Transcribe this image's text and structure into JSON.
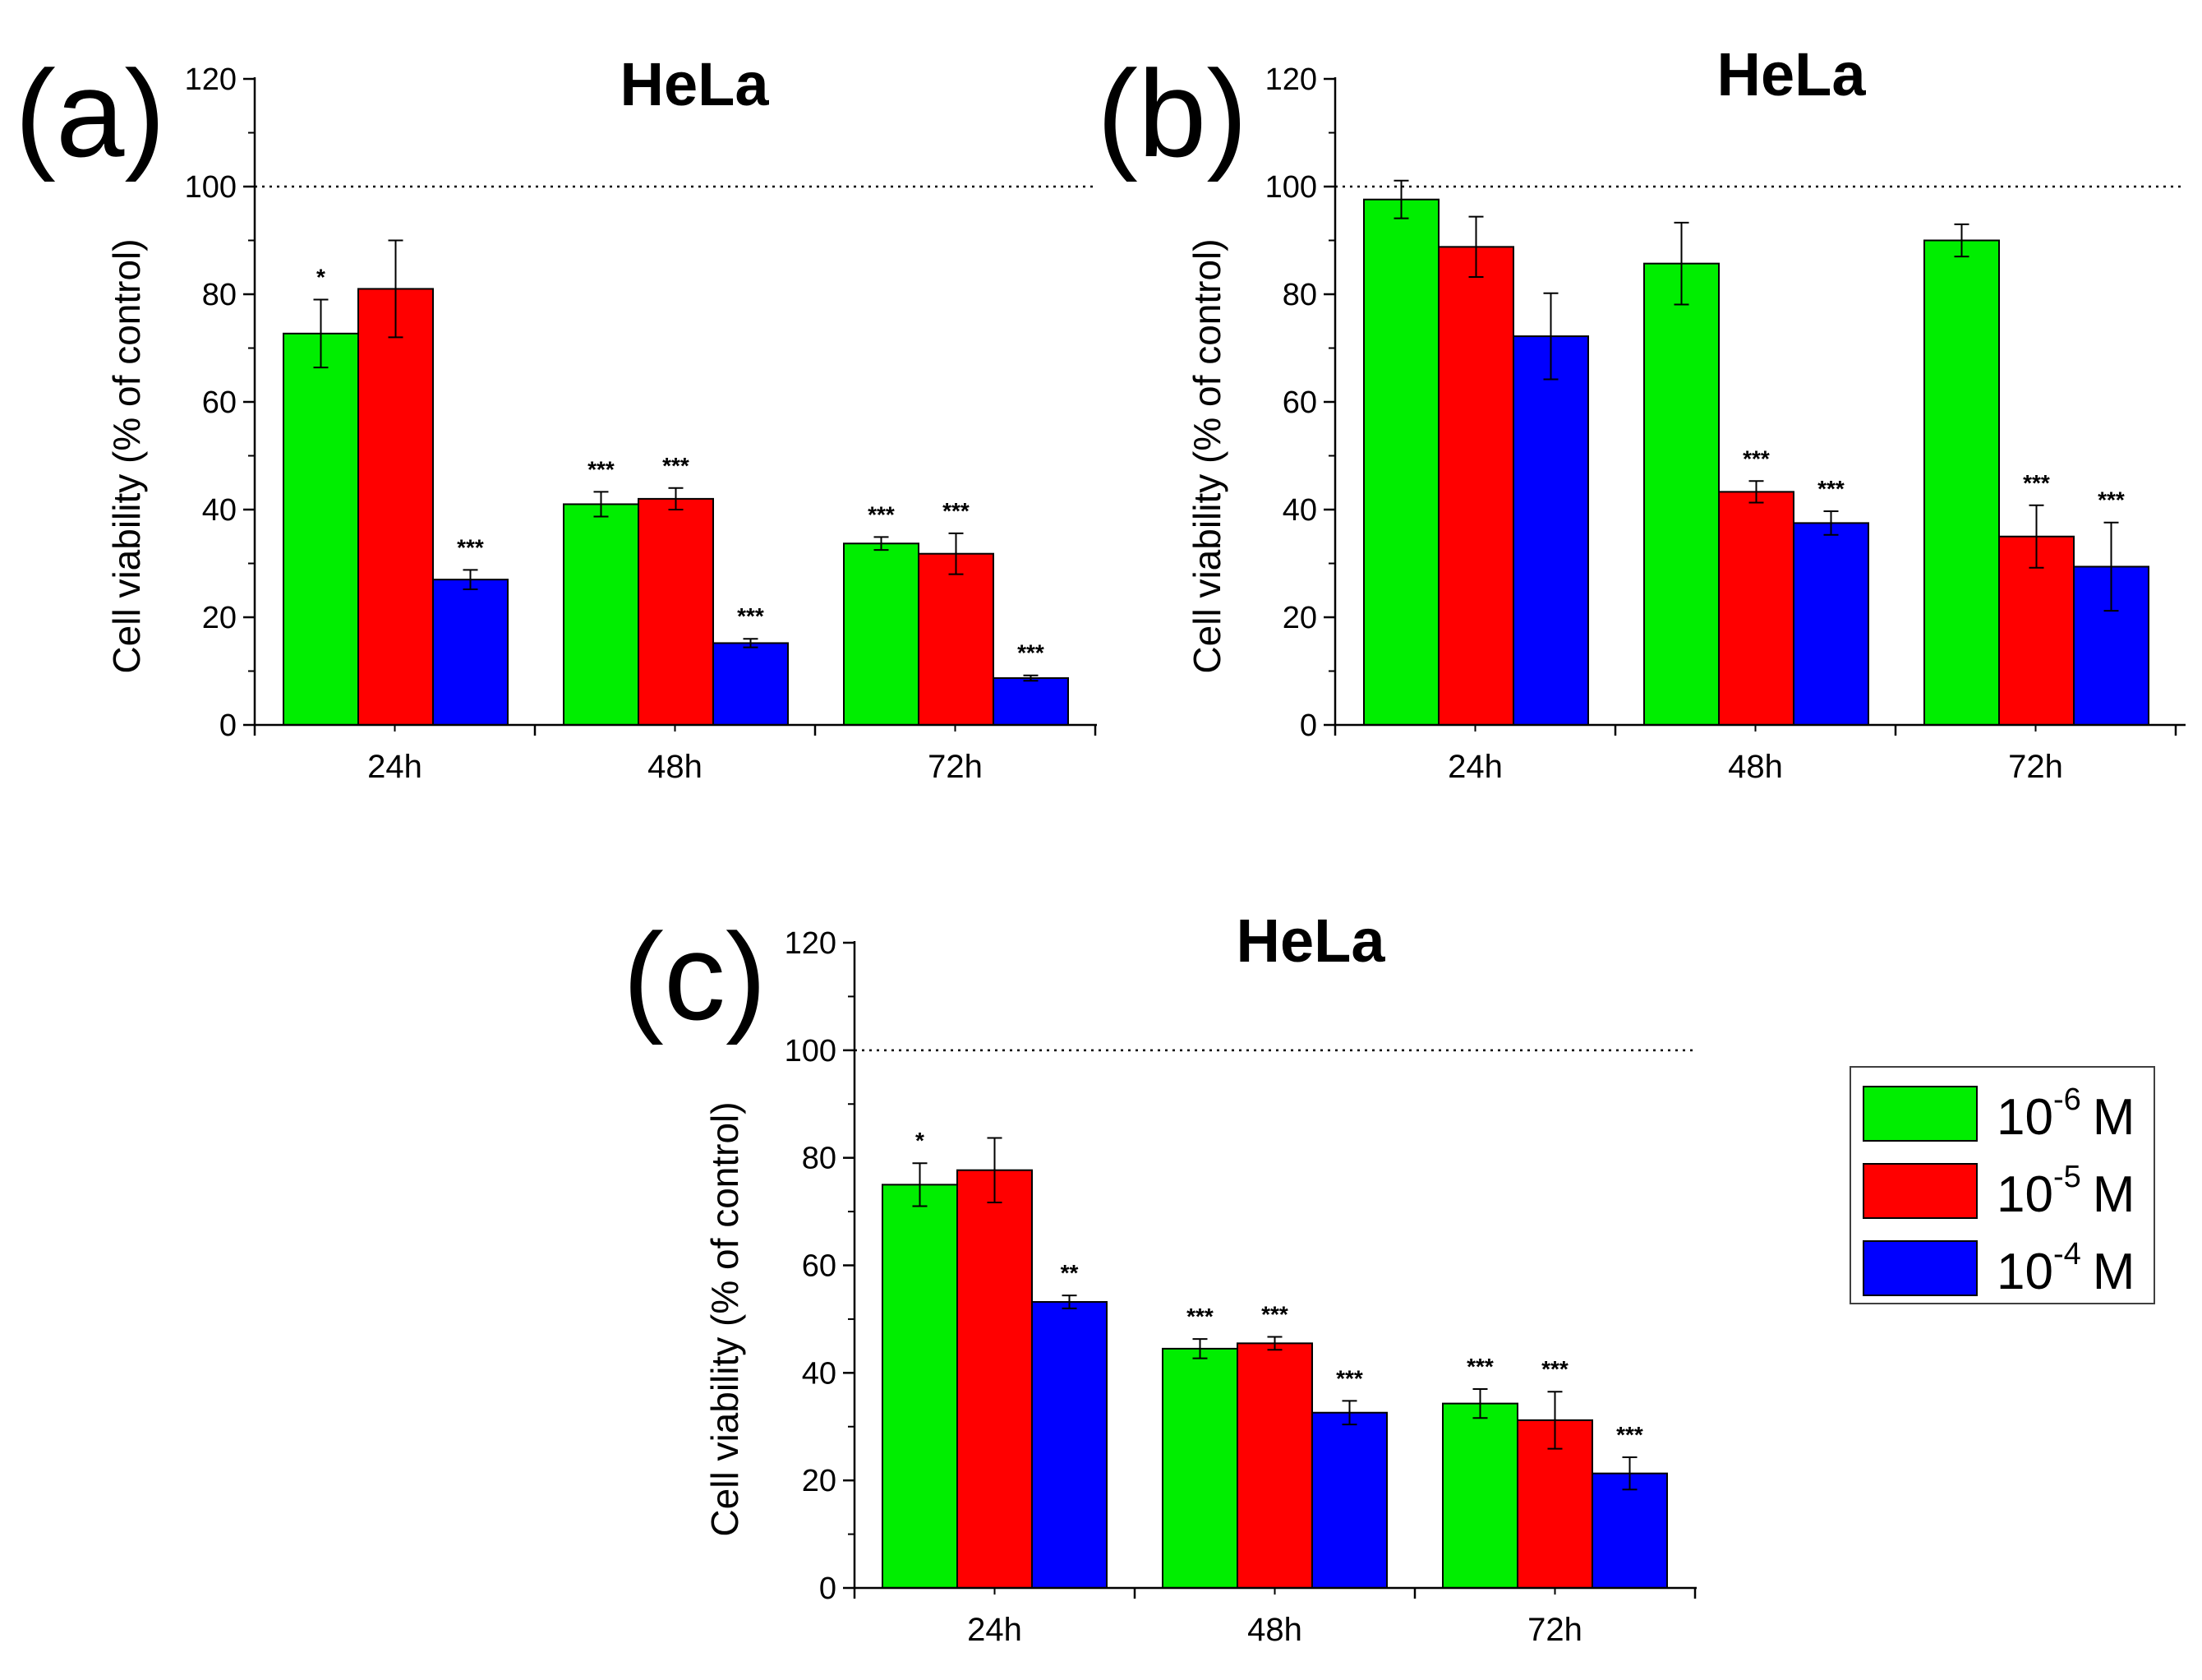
{
  "figure": {
    "series_names": [
      "10^-6 M",
      "10^-5 M",
      "10^-4 M"
    ],
    "colors": [
      "#00ee00",
      "#ff0000",
      "#0000ff"
    ],
    "reference_line": 100
  },
  "legend": {
    "items": [
      {
        "base": "10",
        "exp": "-6",
        "unit": "M",
        "color": "#00ee00"
      },
      {
        "base": "10",
        "exp": "-5",
        "unit": "M",
        "color": "#ff0000"
      },
      {
        "base": "10",
        "exp": "-4",
        "unit": "M",
        "color": "#0000ff"
      }
    ]
  },
  "chart_data": [
    {
      "type": "bar",
      "panel": "(a)",
      "title": "HeLa",
      "ylabel": "Cell viability (% of control)",
      "xlabel": "",
      "ylim": [
        0,
        120
      ],
      "yticks": [
        0,
        20,
        40,
        60,
        80,
        100,
        120
      ],
      "categories": [
        "24h",
        "48h",
        "72h"
      ],
      "series": [
        {
          "name": "10^-6 M",
          "values": [
            72.7,
            41.0,
            33.7
          ],
          "errors": [
            6.3,
            2.3,
            1.2
          ],
          "sig": [
            "*",
            "***",
            "***"
          ]
        },
        {
          "name": "10^-5 M",
          "values": [
            81.0,
            42.0,
            31.8
          ],
          "errors": [
            9.0,
            2.0,
            3.8
          ],
          "sig": [
            "",
            "***",
            "***"
          ]
        },
        {
          "name": "10^-4 M",
          "values": [
            27.0,
            15.2,
            8.7
          ],
          "errors": [
            1.8,
            0.8,
            0.5
          ],
          "sig": [
            "***",
            "***",
            "***"
          ]
        }
      ]
    },
    {
      "type": "bar",
      "panel": "(b)",
      "title": "HeLa",
      "ylabel": "Cell viability (% of control)",
      "xlabel": "",
      "ylim": [
        0,
        120
      ],
      "yticks": [
        0,
        20,
        40,
        60,
        80,
        100,
        120
      ],
      "categories": [
        "24h",
        "48h",
        "72h"
      ],
      "series": [
        {
          "name": "10^-6 M",
          "values": [
            97.6,
            85.7,
            90.0
          ],
          "errors": [
            3.5,
            7.6,
            3.0
          ],
          "sig": [
            "",
            "",
            ""
          ]
        },
        {
          "name": "10^-5 M",
          "values": [
            88.8,
            43.3,
            35.0
          ],
          "errors": [
            5.6,
            2.0,
            5.8
          ],
          "sig": [
            "",
            "***",
            "***"
          ]
        },
        {
          "name": "10^-4 M",
          "values": [
            72.2,
            37.5,
            29.4
          ],
          "errors": [
            8.0,
            2.2,
            8.2
          ],
          "sig": [
            "",
            "***",
            "***"
          ]
        }
      ]
    },
    {
      "type": "bar",
      "panel": "(c)",
      "title": "HeLa",
      "ylabel": "Cell viability (% of control)",
      "xlabel": "",
      "ylim": [
        0,
        120
      ],
      "yticks": [
        0,
        20,
        40,
        60,
        80,
        100,
        120
      ],
      "categories": [
        "24h",
        "48h",
        "72h"
      ],
      "series": [
        {
          "name": "10^-6 M",
          "values": [
            75.0,
            44.5,
            34.3
          ],
          "errors": [
            4.0,
            1.8,
            2.7
          ],
          "sig": [
            "*",
            "***",
            "***"
          ]
        },
        {
          "name": "10^-5 M",
          "values": [
            77.7,
            45.5,
            31.2
          ],
          "errors": [
            6.0,
            1.2,
            5.3
          ],
          "sig": [
            "",
            "***",
            "***"
          ]
        },
        {
          "name": "10^-4 M",
          "values": [
            53.2,
            32.6,
            21.3
          ],
          "errors": [
            1.2,
            2.2,
            3.0
          ],
          "sig": [
            "**",
            "***",
            "***"
          ]
        }
      ]
    }
  ]
}
